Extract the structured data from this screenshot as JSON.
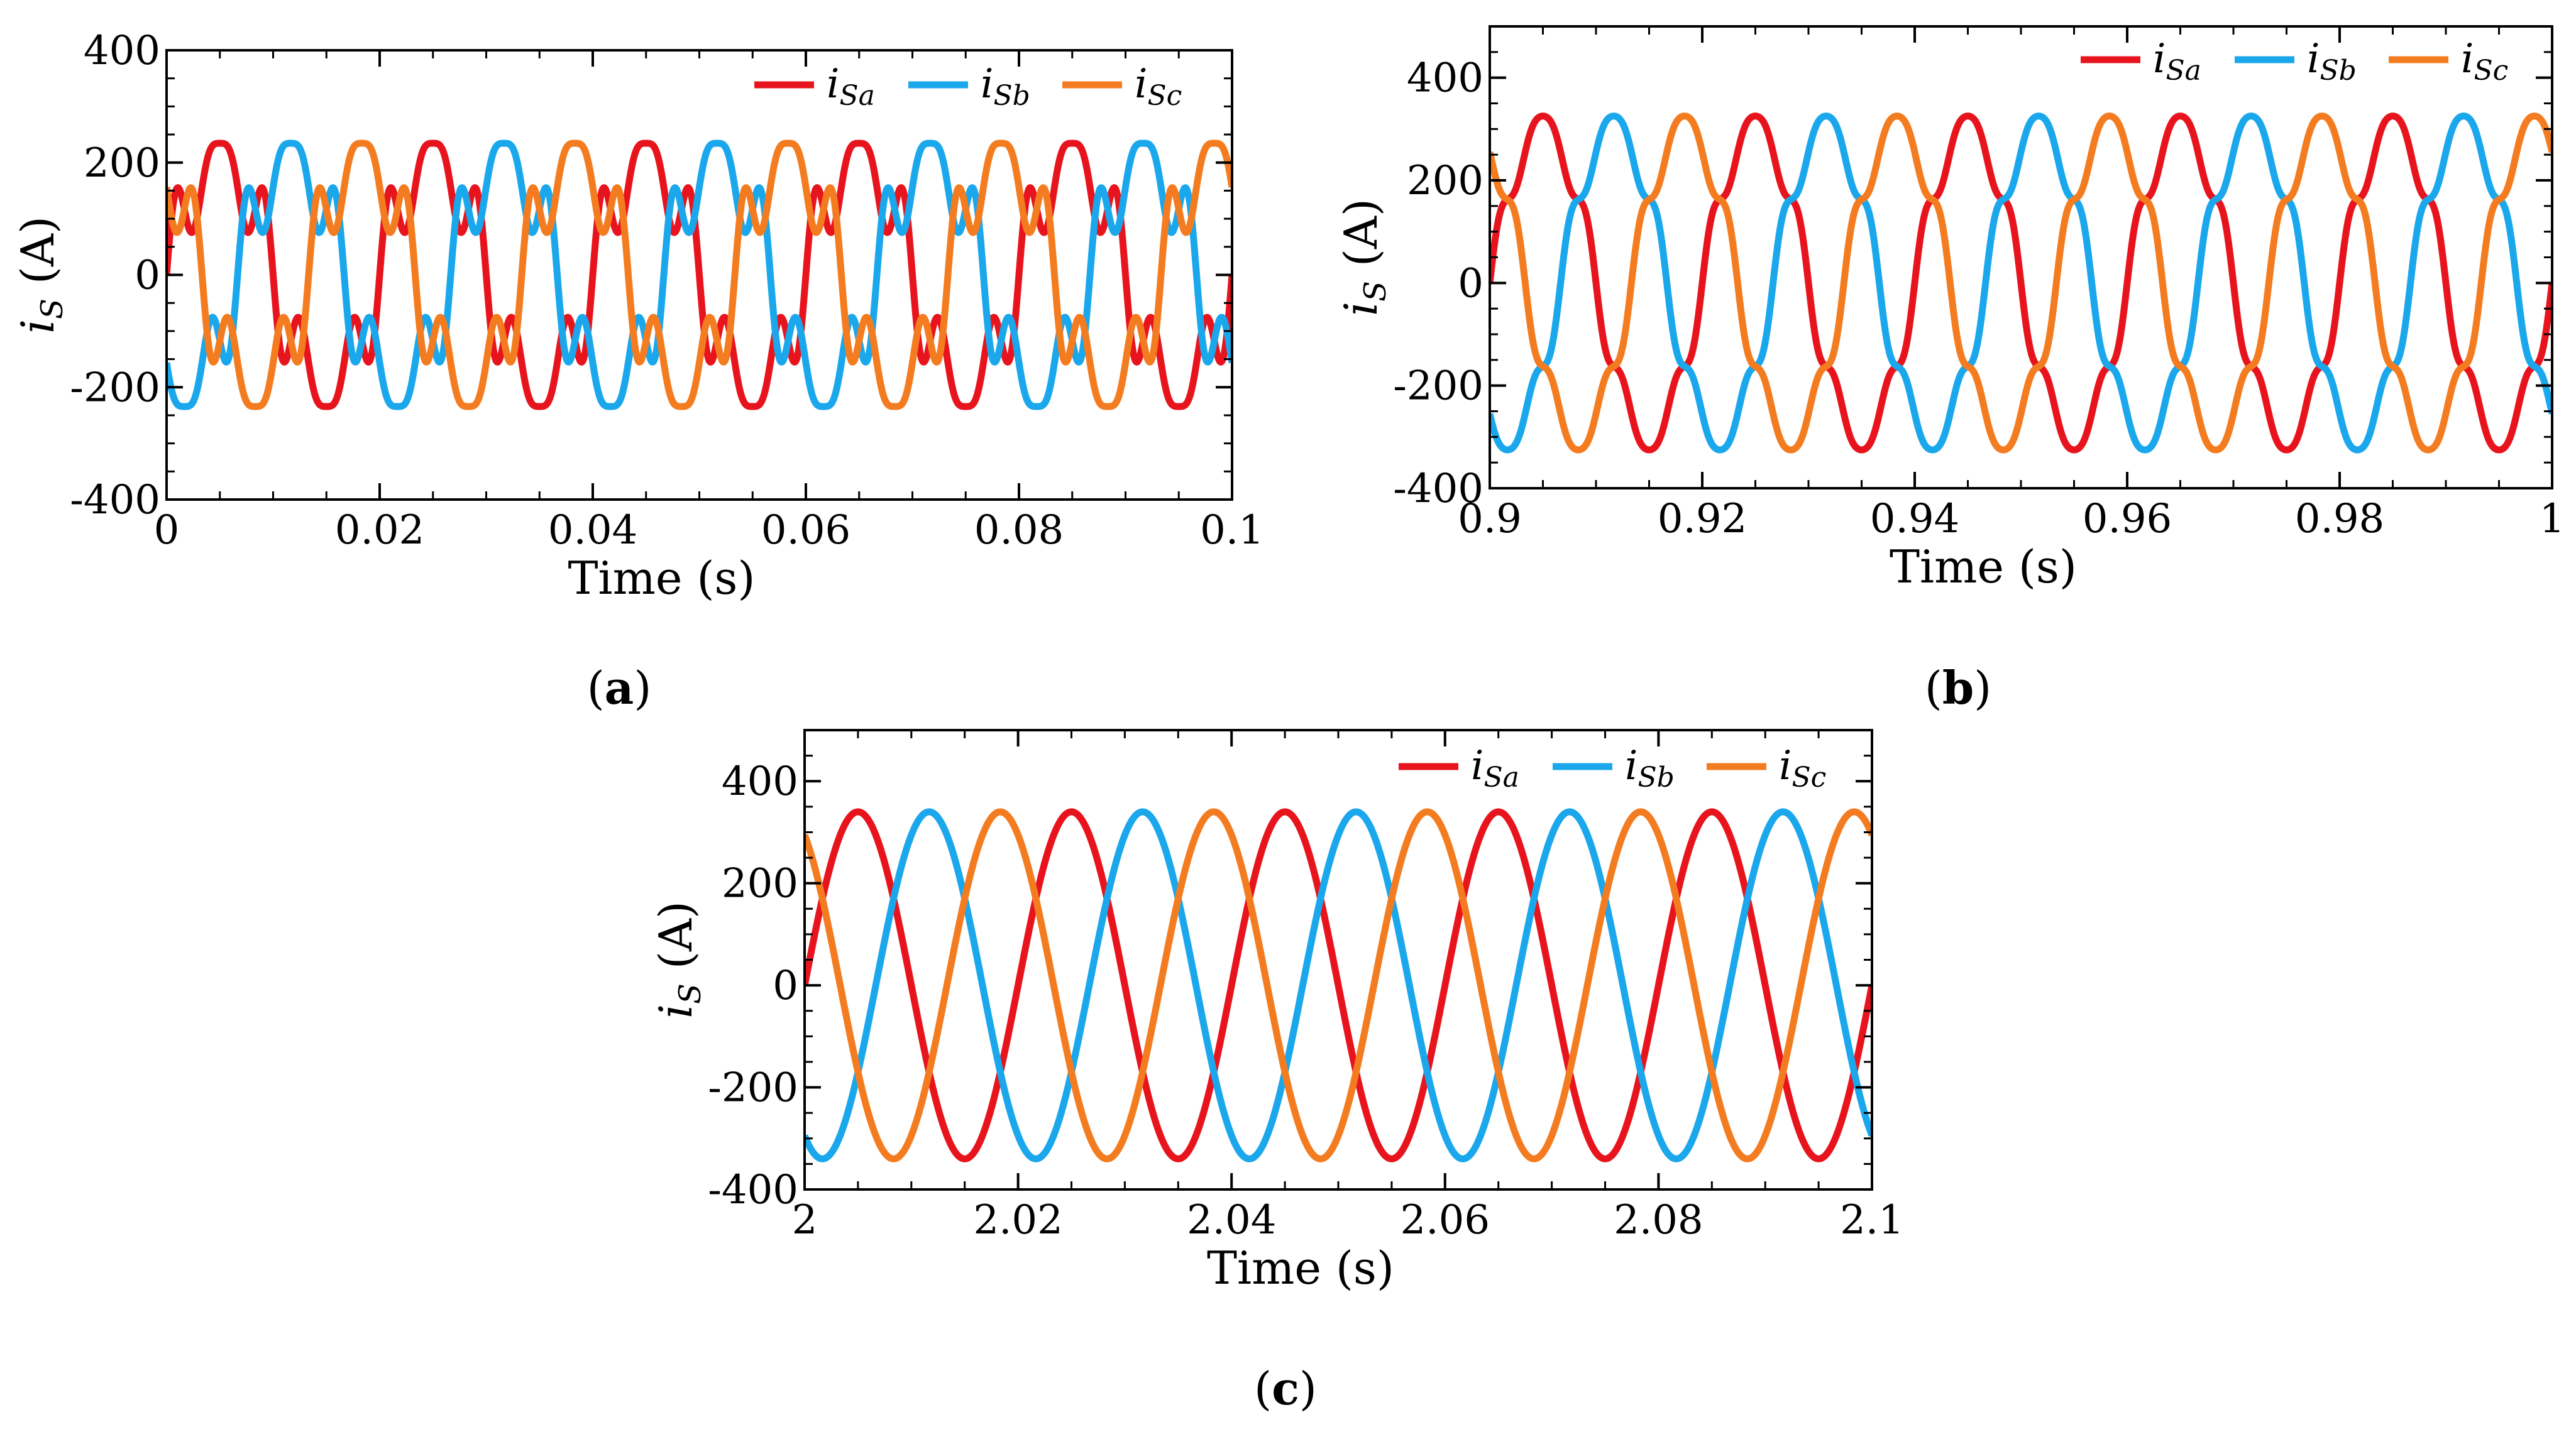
{
  "colors": {
    "isa": "#e8141d",
    "isb": "#1aa7ec",
    "isc": "#f47c20"
  },
  "chart_data": [
    {
      "panel": "a",
      "caption": "a",
      "type": "line",
      "xlabel": "Time (s)",
      "ylabel": "is (A)",
      "ylabel_main": "i",
      "ylabel_sub": "S",
      "ylabel_unit": " (A)",
      "xlim": [
        0,
        0.1
      ],
      "ylim": [
        -400,
        400
      ],
      "xticks": [
        "0",
        "0.02",
        "0.04",
        "0.06",
        "0.08",
        "0.1"
      ],
      "xtick_values": [
        0,
        0.02,
        0.04,
        0.06,
        0.08,
        0.1
      ],
      "yticks": [
        "400",
        "200",
        "0",
        "-200",
        "-400"
      ],
      "ytick_values": [
        400,
        200,
        0,
        -200,
        -400
      ],
      "frequency_hz": 50,
      "waveform": "distorted",
      "harmonics": {
        "h5_ratio": 0.3,
        "h7_ratio": 0.17
      },
      "peak_amplitude": 270,
      "series": [
        {
          "name": "iSa",
          "label_main": "i",
          "label_sub": "Sa",
          "color_key": "isa",
          "phase_deg": 0
        },
        {
          "name": "iSb",
          "label_main": "i",
          "label_sub": "Sb",
          "color_key": "isb",
          "phase_deg": -120
        },
        {
          "name": "iSc",
          "label_main": "i",
          "label_sub": "Sc",
          "color_key": "isc",
          "phase_deg": 120
        }
      ]
    },
    {
      "panel": "b",
      "caption": "b",
      "type": "line",
      "xlabel": "Time (s)",
      "ylabel": "is (A)",
      "ylabel_main": "i",
      "ylabel_sub": "S",
      "ylabel_unit": " (A)",
      "xlim": [
        0.9,
        1.0
      ],
      "ylim": [
        -400,
        500
      ],
      "xticks": [
        "0.9",
        "0.92",
        "0.94",
        "0.96",
        "0.98",
        "1"
      ],
      "xtick_values": [
        0.9,
        0.92,
        0.94,
        0.96,
        0.98,
        1.0
      ],
      "yticks": [
        "400",
        "200",
        "0",
        "-200",
        "-400"
      ],
      "ytick_values": [
        400,
        200,
        0,
        -200,
        -400
      ],
      "frequency_hz": 50,
      "waveform": "slightly distorted",
      "harmonics": {
        "h5_ratio": 0.1,
        "h7_ratio": 0.05
      },
      "peak_amplitude": 340,
      "series": [
        {
          "name": "iSa",
          "label_main": "i",
          "label_sub": "Sa",
          "color_key": "isa",
          "phase_deg": 0
        },
        {
          "name": "iSb",
          "label_main": "i",
          "label_sub": "Sb",
          "color_key": "isb",
          "phase_deg": -120
        },
        {
          "name": "iSc",
          "label_main": "i",
          "label_sub": "Sc",
          "color_key": "isc",
          "phase_deg": 120
        }
      ]
    },
    {
      "panel": "c",
      "caption": "c",
      "type": "line",
      "xlabel": "Time (s)",
      "ylabel": "is (A)",
      "ylabel_main": "i",
      "ylabel_sub": "S",
      "ylabel_unit": " (A)",
      "xlim": [
        2.0,
        2.1
      ],
      "ylim": [
        -400,
        500
      ],
      "xticks": [
        "2",
        "2.02",
        "2.04",
        "2.06",
        "2.08",
        "2.1"
      ],
      "xtick_values": [
        2.0,
        2.02,
        2.04,
        2.06,
        2.08,
        2.1
      ],
      "yticks": [
        "400",
        "200",
        "0",
        "-200",
        "-400"
      ],
      "ytick_values": [
        400,
        200,
        0,
        -200,
        -400
      ],
      "frequency_hz": 50,
      "waveform": "sinusoidal",
      "harmonics": {
        "h5_ratio": 0,
        "h7_ratio": 0
      },
      "peak_amplitude": 340,
      "series": [
        {
          "name": "iSa",
          "label_main": "i",
          "label_sub": "Sa",
          "color_key": "isa",
          "phase_deg": 0
        },
        {
          "name": "iSb",
          "label_main": "i",
          "label_sub": "Sb",
          "color_key": "isb",
          "phase_deg": -120
        },
        {
          "name": "iSc",
          "label_main": "i",
          "label_sub": "Sc",
          "color_key": "isc",
          "phase_deg": 120
        }
      ]
    }
  ]
}
